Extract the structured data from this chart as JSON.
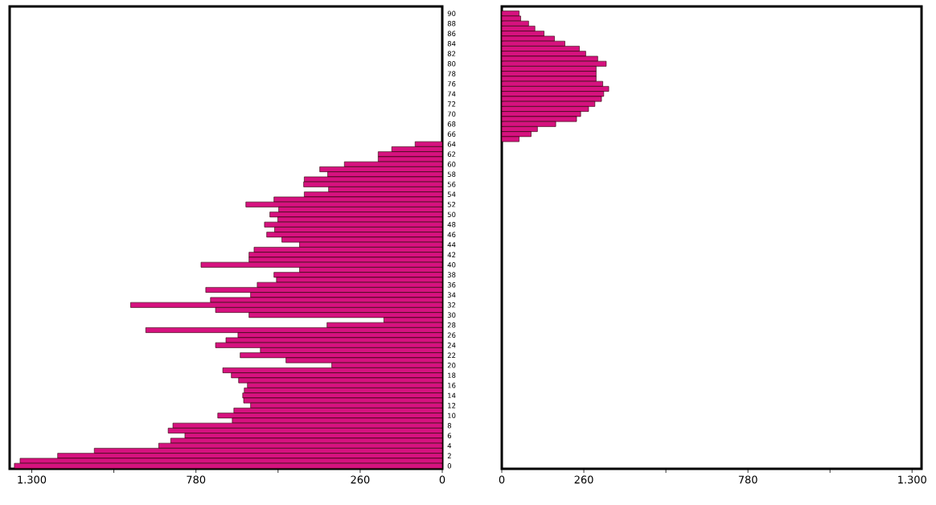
{
  "chart_data": [
    {
      "type": "bar",
      "orientation": "horizontal",
      "color": "#d6127f",
      "categories": [
        "90",
        null,
        "88",
        null,
        "86",
        null,
        "84",
        null,
        "82",
        null,
        "80",
        null,
        "78",
        null,
        "76",
        null,
        "74",
        null,
        "72",
        null,
        "70",
        null,
        "68",
        null,
        "66",
        null,
        "64",
        null,
        "62",
        null,
        "60",
        null,
        "58",
        null,
        "56",
        null,
        "54",
        null,
        "52",
        null,
        "50",
        null,
        "48",
        null,
        "46",
        null,
        "44",
        null,
        "42",
        null,
        "40",
        null,
        "38",
        null,
        "36",
        null,
        "34",
        null,
        "32",
        null,
        "30",
        null,
        "28",
        null,
        "26",
        null,
        "24",
        null,
        "22",
        null,
        "20",
        null,
        "18",
        null,
        "16",
        null,
        "14",
        null,
        "12",
        null,
        "10",
        null,
        "8",
        null,
        "6",
        null,
        "4",
        null,
        "2",
        null,
        "0"
      ],
      "values": [
        null,
        null,
        null,
        null,
        null,
        null,
        null,
        null,
        null,
        null,
        null,
        null,
        null,
        null,
        null,
        null,
        null,
        null,
        null,
        null,
        null,
        null,
        null,
        null,
        null,
        null,
        86,
        160,
        203,
        203,
        310,
        388,
        363,
        437,
        439,
        360,
        437,
        533,
        622,
        518,
        546,
        521,
        563,
        531,
        556,
        508,
        452,
        596,
        612,
        612,
        764,
        452,
        533,
        525,
        586,
        749,
        607,
        734,
        987,
        718,
        612,
        185,
        365,
        939,
        647,
        685,
        718,
        576,
        640,
        495,
        350,
        695,
        668,
        645,
        617,
        627,
        632,
        629,
        607,
        660,
        711,
        665,
        853,
        868,
        815,
        860,
        898,
        1102,
        1218,
        1337,
        1355
      ],
      "xlim": [
        1370,
        0
      ],
      "xticks": [
        {
          "value": 1300,
          "label": "1.300"
        },
        {
          "value": 1040,
          "label": null
        },
        780,
        {
          "value": 520,
          "label": null
        },
        260,
        0
      ]
    },
    {
      "type": "bar",
      "orientation": "horizontal",
      "color": "#d6127f",
      "tick_labels": "x",
      "categories": [
        "90",
        null,
        "88",
        null,
        "86",
        null,
        "84",
        null,
        "82",
        null,
        "80",
        null,
        "78",
        null,
        "76",
        null,
        "74",
        null,
        "72",
        null,
        "70",
        null,
        "68",
        null,
        "66",
        null,
        "64",
        null,
        "62",
        null,
        "60",
        null,
        "58",
        null,
        "56",
        null,
        "54",
        null,
        "52",
        null,
        "50",
        null,
        "48",
        null,
        "46",
        null,
        "44",
        null,
        "42",
        null,
        "40",
        null,
        "38",
        null,
        "36",
        null,
        "34",
        null,
        "32",
        null,
        "30",
        null,
        "28",
        null,
        "26",
        null,
        "24",
        null,
        "22",
        null,
        "20",
        null,
        "18",
        null,
        "16",
        null,
        "14",
        null,
        "12",
        null,
        "10",
        null,
        "8",
        null,
        "6",
        null,
        "4",
        null,
        "2",
        null,
        "0"
      ],
      "values": [
        55,
        60,
        85,
        105,
        134,
        167,
        200,
        246,
        266,
        304,
        331,
        299,
        299,
        299,
        320,
        339,
        323,
        316,
        295,
        275,
        250,
        237,
        171,
        113,
        93,
        55,
        null,
        null,
        null,
        null,
        null,
        null,
        null,
        null,
        null,
        null,
        null,
        null,
        null,
        null,
        null,
        null,
        null,
        null,
        null,
        null,
        null,
        null,
        null,
        null,
        null,
        null,
        null,
        null,
        null,
        null,
        null,
        null,
        null,
        null,
        null,
        null,
        null,
        null,
        null,
        null,
        null,
        null,
        null,
        null,
        null,
        null,
        null,
        null,
        null,
        null,
        null,
        null,
        null,
        null,
        null,
        null,
        null,
        null,
        null,
        null,
        null,
        null,
        null,
        null,
        null
      ],
      "xlim": [
        0,
        1330
      ],
      "xticks": [
        0,
        260,
        {
          "value": 520,
          "label": null
        },
        780,
        {
          "value": 1040,
          "label": null
        },
        {
          "value": 1300,
          "label": "1.300"
        }
      ]
    }
  ]
}
